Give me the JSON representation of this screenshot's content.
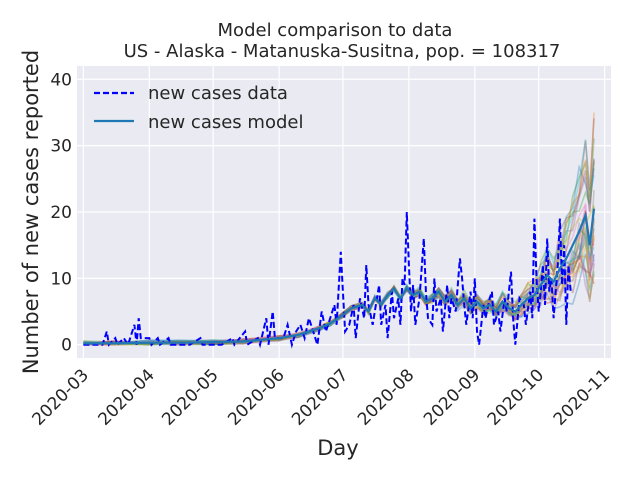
{
  "chart_data": {
    "type": "line",
    "title": "Model comparison to data",
    "subtitle": "US - Alaska - Matanuska-Susitna, pop. = 108317",
    "xlabel": "Day",
    "ylabel": "Number of new cases reported",
    "x_range": [
      "2020-02-27",
      "2020-11-04"
    ],
    "ylim": [
      -2,
      42
    ],
    "x_ticks": [
      "2020-03",
      "2020-04",
      "2020-05",
      "2020-06",
      "2020-07",
      "2020-08",
      "2020-09",
      "2020-10",
      "2020-11"
    ],
    "y_ticks": [
      0,
      10,
      20,
      30,
      40
    ],
    "grid": true,
    "legend_position": "top-left",
    "legend": [
      {
        "label": "new cases data",
        "style": "dashed",
        "color": "#0000ff"
      },
      {
        "label": "new cases model",
        "style": "solid",
        "color": "#1f77b4"
      }
    ],
    "colors": {
      "background": "#eaeaf2",
      "grid": "#ffffff",
      "data": "#0000ff",
      "model": "#1f77b4",
      "ensemble": [
        "#1f77b4",
        "#ff7f0e",
        "#2ca02c",
        "#d62728",
        "#9467bd",
        "#8c564b",
        "#e377c2",
        "#7f7f7f",
        "#bcbd22",
        "#17becf"
      ]
    },
    "series": [
      {
        "name": "new cases data",
        "points": [
          [
            "2020-03-01",
            0
          ],
          [
            "2020-03-10",
            0
          ],
          [
            "2020-03-12",
            2
          ],
          [
            "2020-03-13",
            0
          ],
          [
            "2020-03-16",
            1
          ],
          [
            "2020-03-17",
            0
          ],
          [
            "2020-03-20",
            1
          ],
          [
            "2020-03-22",
            0
          ],
          [
            "2020-03-25",
            3
          ],
          [
            "2020-03-26",
            0
          ],
          [
            "2020-03-27",
            4
          ],
          [
            "2020-03-28",
            1
          ],
          [
            "2020-04-01",
            1
          ],
          [
            "2020-04-02",
            0
          ],
          [
            "2020-04-05",
            1
          ],
          [
            "2020-04-06",
            0
          ],
          [
            "2020-04-10",
            1
          ],
          [
            "2020-04-11",
            0
          ],
          [
            "2020-04-20",
            0
          ],
          [
            "2020-04-25",
            1
          ],
          [
            "2020-04-26",
            0
          ],
          [
            "2020-05-05",
            0
          ],
          [
            "2020-05-10",
            1
          ],
          [
            "2020-05-11",
            0
          ],
          [
            "2020-05-16",
            2
          ],
          [
            "2020-05-17",
            0
          ],
          [
            "2020-05-22",
            1
          ],
          [
            "2020-05-23",
            0
          ],
          [
            "2020-05-26",
            4
          ],
          [
            "2020-05-27",
            0
          ],
          [
            "2020-05-29",
            5
          ],
          [
            "2020-05-30",
            1
          ],
          [
            "2020-06-03",
            1
          ],
          [
            "2020-06-05",
            3
          ],
          [
            "2020-06-07",
            0
          ],
          [
            "2020-06-09",
            2
          ],
          [
            "2020-06-11",
            3
          ],
          [
            "2020-06-13",
            1
          ],
          [
            "2020-06-15",
            4
          ],
          [
            "2020-06-17",
            2
          ],
          [
            "2020-06-19",
            0
          ],
          [
            "2020-06-21",
            5
          ],
          [
            "2020-06-23",
            2
          ],
          [
            "2020-06-25",
            4
          ],
          [
            "2020-06-27",
            6
          ],
          [
            "2020-06-28",
            3
          ],
          [
            "2020-06-30",
            14
          ],
          [
            "2020-07-01",
            8
          ],
          [
            "2020-07-02",
            2
          ],
          [
            "2020-07-04",
            3
          ],
          [
            "2020-07-06",
            6
          ],
          [
            "2020-07-07",
            1
          ],
          [
            "2020-07-09",
            7
          ],
          [
            "2020-07-11",
            4
          ],
          [
            "2020-07-12",
            12
          ],
          [
            "2020-07-13",
            6
          ],
          [
            "2020-07-15",
            3
          ],
          [
            "2020-07-16",
            5
          ],
          [
            "2020-07-18",
            9
          ],
          [
            "2020-07-19",
            3
          ],
          [
            "2020-07-21",
            6
          ],
          [
            "2020-07-22",
            1
          ],
          [
            "2020-07-24",
            8
          ],
          [
            "2020-07-25",
            4
          ],
          [
            "2020-07-27",
            7
          ],
          [
            "2020-07-28",
            3
          ],
          [
            "2020-07-29",
            10
          ],
          [
            "2020-07-30",
            9
          ],
          [
            "2020-07-31",
            20
          ],
          [
            "2020-08-01",
            12
          ],
          [
            "2020-08-02",
            5
          ],
          [
            "2020-08-03",
            9
          ],
          [
            "2020-08-04",
            3
          ],
          [
            "2020-08-06",
            7
          ],
          [
            "2020-08-08",
            16
          ],
          [
            "2020-08-09",
            8
          ],
          [
            "2020-08-10",
            4
          ],
          [
            "2020-08-12",
            3
          ],
          [
            "2020-08-13",
            10
          ],
          [
            "2020-08-14",
            5
          ],
          [
            "2020-08-16",
            7
          ],
          [
            "2020-08-17",
            2
          ],
          [
            "2020-08-19",
            9
          ],
          [
            "2020-08-20",
            4
          ],
          [
            "2020-08-21",
            7
          ],
          [
            "2020-08-23",
            5
          ],
          [
            "2020-08-25",
            13
          ],
          [
            "2020-08-26",
            10
          ],
          [
            "2020-08-27",
            6
          ],
          [
            "2020-08-28",
            3
          ],
          [
            "2020-08-30",
            8
          ],
          [
            "2020-08-31",
            4
          ],
          [
            "2020-09-01",
            10
          ],
          [
            "2020-09-02",
            2
          ],
          [
            "2020-09-03",
            0
          ],
          [
            "2020-09-05",
            6
          ],
          [
            "2020-09-06",
            4
          ],
          [
            "2020-09-08",
            7
          ],
          [
            "2020-09-09",
            8
          ],
          [
            "2020-09-10",
            3
          ],
          [
            "2020-09-12",
            5
          ],
          [
            "2020-09-13",
            2
          ],
          [
            "2020-09-15",
            7
          ],
          [
            "2020-09-16",
            5
          ],
          [
            "2020-09-18",
            11
          ],
          [
            "2020-09-19",
            4
          ],
          [
            "2020-09-20",
            0
          ],
          [
            "2020-09-22",
            7
          ],
          [
            "2020-09-24",
            6
          ],
          [
            "2020-09-25",
            3
          ],
          [
            "2020-09-27",
            8
          ],
          [
            "2020-09-28",
            4
          ],
          [
            "2020-09-29",
            19
          ],
          [
            "2020-09-30",
            10
          ],
          [
            "2020-10-01",
            5
          ],
          [
            "2020-10-02",
            8
          ],
          [
            "2020-10-03",
            12
          ],
          [
            "2020-10-04",
            6
          ],
          [
            "2020-10-05",
            16
          ],
          [
            "2020-10-06",
            8
          ],
          [
            "2020-10-07",
            10
          ],
          [
            "2020-10-08",
            4
          ],
          [
            "2020-10-10",
            12
          ],
          [
            "2020-10-11",
            19
          ],
          [
            "2020-10-12",
            9
          ],
          [
            "2020-10-13",
            15
          ],
          [
            "2020-10-14",
            3
          ],
          [
            "2020-10-15",
            12
          ],
          [
            "2020-10-16",
            8
          ]
        ]
      },
      {
        "name": "new cases model",
        "points": [
          [
            "2020-03-01",
            0.2
          ],
          [
            "2020-03-15",
            0.2
          ],
          [
            "2020-04-01",
            0.3
          ],
          [
            "2020-04-15",
            0.3
          ],
          [
            "2020-05-01",
            0.4
          ],
          [
            "2020-05-15",
            0.5
          ],
          [
            "2020-06-01",
            1.0
          ],
          [
            "2020-06-10",
            1.5
          ],
          [
            "2020-06-20",
            2.5
          ],
          [
            "2020-06-25",
            3.2
          ],
          [
            "2020-07-01",
            4.5
          ],
          [
            "2020-07-05",
            5.5
          ],
          [
            "2020-07-10",
            6.0
          ],
          [
            "2020-07-13",
            5.0
          ],
          [
            "2020-07-16",
            7.0
          ],
          [
            "2020-07-19",
            6.0
          ],
          [
            "2020-07-22",
            7.5
          ],
          [
            "2020-07-25",
            8.5
          ],
          [
            "2020-07-28",
            7.0
          ],
          [
            "2020-07-31",
            8.5
          ],
          [
            "2020-08-03",
            7.5
          ],
          [
            "2020-08-06",
            8.0
          ],
          [
            "2020-08-09",
            6.5
          ],
          [
            "2020-08-12",
            7.0
          ],
          [
            "2020-08-15",
            8.0
          ],
          [
            "2020-08-18",
            6.5
          ],
          [
            "2020-08-21",
            7.5
          ],
          [
            "2020-08-24",
            6.0
          ],
          [
            "2020-08-27",
            7.0
          ],
          [
            "2020-08-30",
            5.5
          ],
          [
            "2020-09-02",
            6.5
          ],
          [
            "2020-09-05",
            5.5
          ],
          [
            "2020-09-08",
            6.0
          ],
          [
            "2020-09-11",
            5.0
          ],
          [
            "2020-09-14",
            6.5
          ],
          [
            "2020-09-17",
            5.5
          ],
          [
            "2020-09-20",
            5.0
          ],
          [
            "2020-09-23",
            6.0
          ],
          [
            "2020-09-26",
            7.0
          ],
          [
            "2020-09-29",
            7.5
          ],
          [
            "2020-10-02",
            9.0
          ],
          [
            "2020-10-05",
            10.5
          ],
          [
            "2020-10-08",
            9.5
          ],
          [
            "2020-10-11",
            11.5
          ],
          [
            "2020-10-14",
            13.0
          ],
          [
            "2020-10-17",
            15.0
          ],
          [
            "2020-10-20",
            17.0
          ],
          [
            "2020-10-23",
            19.5
          ],
          [
            "2020-10-25",
            15.0
          ],
          [
            "2020-10-27",
            20.5
          ]
        ]
      }
    ]
  }
}
